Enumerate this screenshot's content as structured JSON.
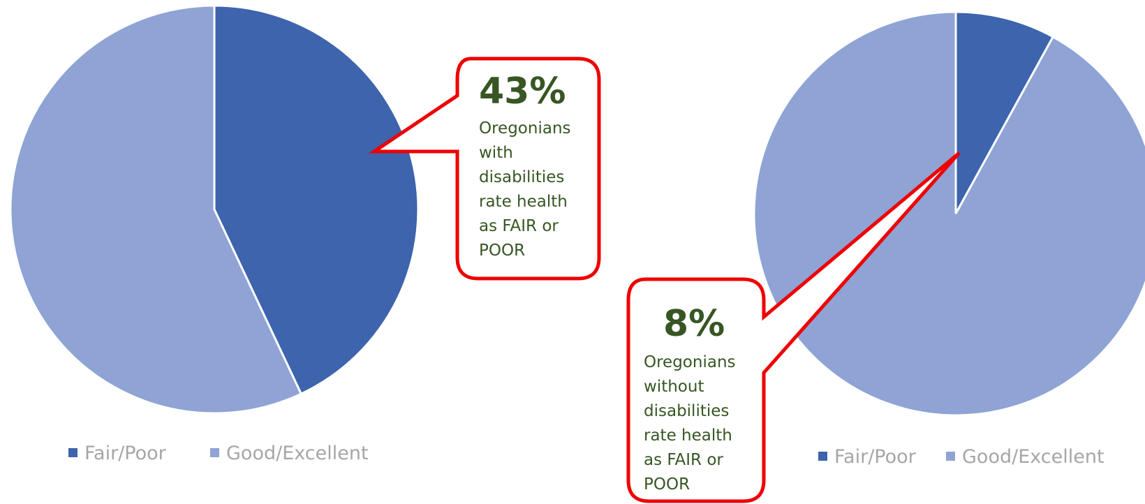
{
  "colors": {
    "fair_poor": "#3d64ad",
    "good_excellent": "#8fa3d4",
    "callout_border": "#ee0000",
    "callout_text": "#375623",
    "legend_text": "#a6a6a6"
  },
  "chart_data": [
    {
      "type": "pie",
      "title": "",
      "categories": [
        "Fair/Poor",
        "Good/Excellent"
      ],
      "values": [
        43,
        57
      ],
      "start_angle_deg": 0,
      "direction": "clockwise",
      "legend": {
        "position": "bottom",
        "entries": [
          "Fair/Poor",
          "Good/Excellent"
        ]
      },
      "callout": {
        "percent": "43%",
        "lines": [
          "Oregonians",
          "with",
          "disabilities",
          "rate health",
          "as FAIR or",
          "POOR"
        ]
      }
    },
    {
      "type": "pie",
      "title": "",
      "categories": [
        "Fair/Poor",
        "Good/Excellent"
      ],
      "values": [
        8,
        92
      ],
      "start_angle_deg": 0,
      "direction": "clockwise",
      "legend": {
        "position": "bottom",
        "entries": [
          "Fair/Poor",
          "Good/Excellent"
        ]
      },
      "callout": {
        "percent": "8%",
        "lines": [
          "Oregonians",
          "without",
          "disabilities",
          "rate health",
          "as FAIR or",
          "POOR"
        ]
      }
    }
  ]
}
